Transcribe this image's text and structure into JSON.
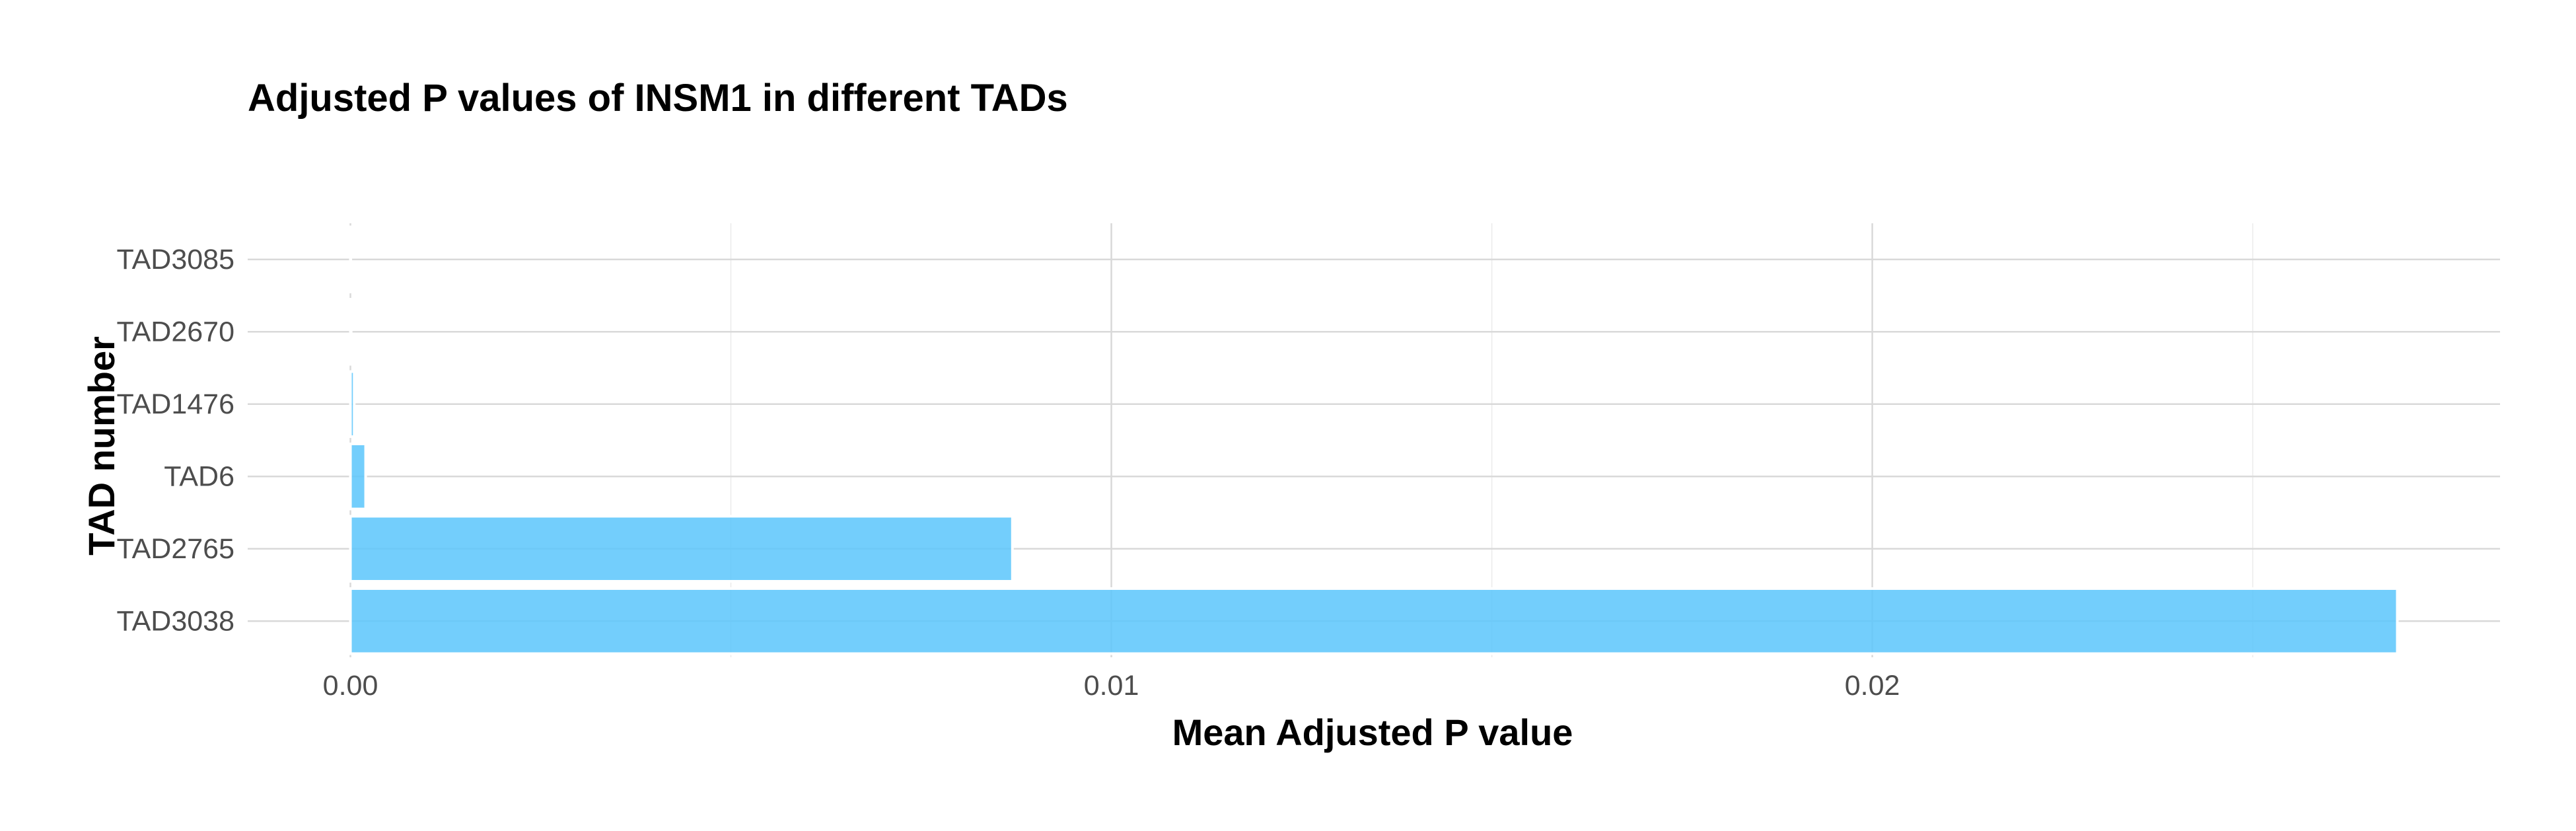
{
  "chart_data": {
    "type": "bar",
    "orientation": "horizontal",
    "title": "Adjusted P values of INSM1 in different TADs",
    "xlabel": "Mean Adjusted P value",
    "ylabel": "TAD number",
    "categories": [
      "TAD3038",
      "TAD2765",
      "TAD6",
      "TAD1476",
      "TAD2670",
      "TAD3085"
    ],
    "values": [
      0.0269,
      0.0087,
      0.0002,
      5e-05,
      1e-05,
      5e-06
    ],
    "xlim": [
      -0.00135,
      0.02825
    ],
    "x_ticks": [
      0.0,
      0.01,
      0.02
    ],
    "x_tick_labels": [
      "0.00",
      "0.01",
      "0.02"
    ],
    "x_minor_ticks": [
      0.005,
      0.015,
      0.025
    ],
    "bar_color": "#5bc5fb",
    "grid": true,
    "legend": "none"
  }
}
